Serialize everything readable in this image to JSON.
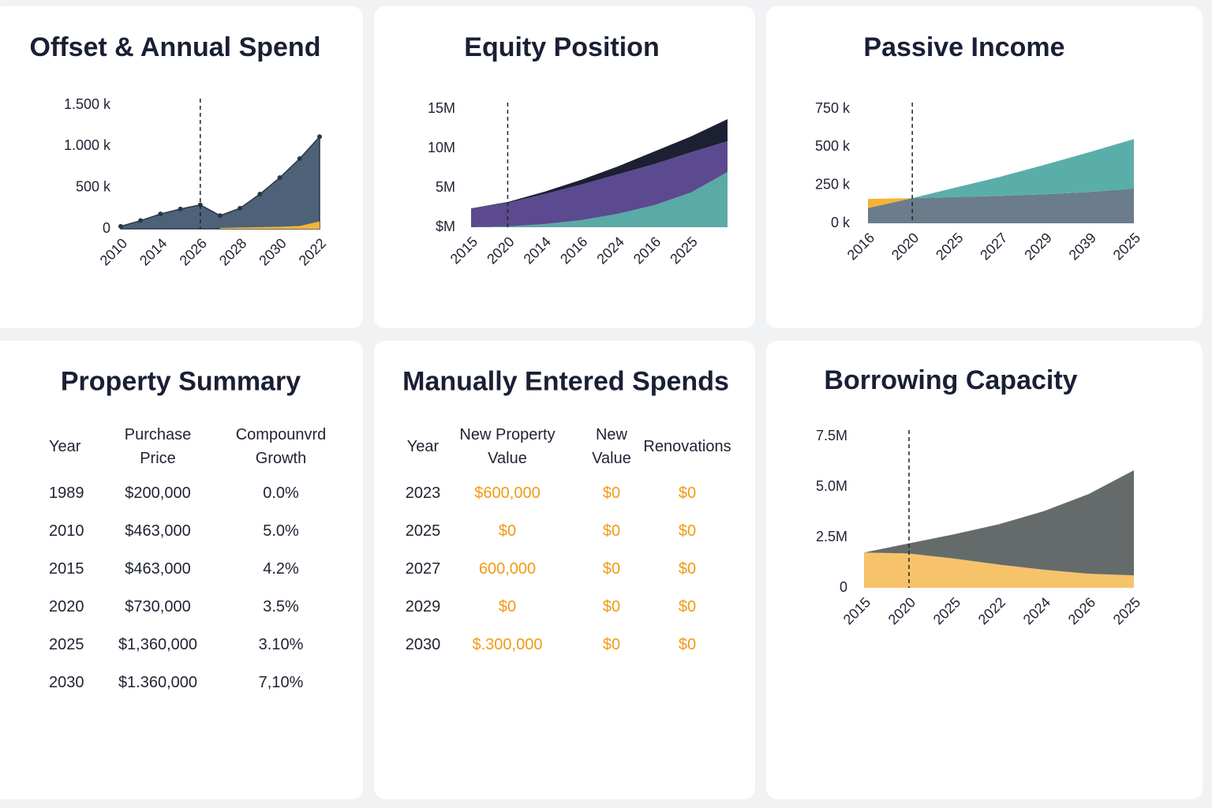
{
  "chart_data": [
    {
      "type": "area",
      "title": "Offset & Annual Spend",
      "categories": [
        "2010",
        null,
        "2014",
        null,
        "2026",
        null,
        "2028",
        null,
        "2030",
        null,
        "2022"
      ],
      "ylim": [
        0,
        1500
      ],
      "yticks": [
        0,
        {
          "value": 500,
          "label": "500 k"
        },
        {
          "value": 1000,
          "label": "1.000 k"
        },
        {
          "value": 1500,
          "label": "1.500 k"
        }
      ],
      "stacked": false,
      "markers": true,
      "marker_x": "2026",
      "series": [
        {
          "color": "#4d6278",
          "values": [
            30,
            100,
            180,
            240,
            290,
            160,
            250,
            420,
            620,
            850,
            1115
          ]
        },
        {
          "color": "#f5b335",
          "values": [
            null,
            null,
            null,
            null,
            null,
            10,
            15,
            20,
            25,
            35,
            90
          ]
        }
      ]
    },
    {
      "type": "area",
      "title": "Equity Position",
      "categories": [
        "2015",
        "2020",
        "2014",
        "2016",
        "2024",
        "2016",
        "2025",
        null
      ],
      "ylim": [
        0,
        15
      ],
      "yticks": [
        {
          "value": 0,
          "label": "$M"
        },
        {
          "value": 5,
          "label": "5M"
        },
        {
          "value": 10,
          "label": "10M"
        },
        {
          "value": 15,
          "label": "15M"
        }
      ],
      "stacked": true,
      "markers": false,
      "marker_x": "2020",
      "series": [
        {
          "color": "#5aaaa6",
          "values": [
            0,
            0.1,
            0.4,
            0.9,
            1.7,
            2.8,
            4.4,
            7.0
          ]
        },
        {
          "color": "#5b4a8f",
          "values": [
            2.4,
            3.0,
            3.8,
            4.5,
            5.0,
            5.2,
            5.1,
            3.9
          ]
        },
        {
          "color": "#1d1f33",
          "values": [
            0,
            0.1,
            0.3,
            0.6,
            1.0,
            1.6,
            2.0,
            2.8
          ]
        }
      ]
    },
    {
      "type": "area",
      "title": "Passive Income",
      "categories": [
        "2016",
        "2020",
        "2025",
        "2027",
        "2029",
        "2039",
        "2025"
      ],
      "ylim": [
        0,
        750
      ],
      "yticks": [
        {
          "value": 0,
          "label": "0 k"
        },
        {
          "value": 250,
          "label": "250 k"
        },
        {
          "value": 500,
          "label": "500 k"
        },
        {
          "value": 750,
          "label": "750 k"
        }
      ],
      "stacked": true,
      "markers": false,
      "marker_x": "2020",
      "series": [
        {
          "color": "#6b7c8c",
          "values": [
            100,
            165,
            172,
            180,
            190,
            205,
            228
          ]
        },
        {
          "color": "#f5b335",
          "values": [
            60,
            0,
            null,
            null,
            null,
            null,
            null
          ]
        },
        {
          "color": "#5aaeaa",
          "values": [
            null,
            0,
            64,
            126,
            195,
            262,
            324
          ]
        }
      ]
    },
    {
      "type": "area",
      "title": "Borrowing Capacity",
      "categories": [
        "2015",
        "2020",
        "2025",
        "2022",
        "2024",
        "2026",
        "2025"
      ],
      "ylim": [
        0,
        7.5
      ],
      "yticks": [
        0,
        {
          "value": 2.5,
          "label": "2.5M"
        },
        {
          "value": 5,
          "label": "5.0M"
        },
        {
          "value": 7.5,
          "label": "7.5M"
        }
      ],
      "stacked": true,
      "markers": false,
      "marker_x": "2020",
      "series": [
        {
          "color": "#f7c36a",
          "values": [
            1.75,
            1.7,
            1.45,
            1.15,
            0.9,
            0.7,
            0.62
          ]
        },
        {
          "color": "#656b6b",
          "values": [
            0,
            0.5,
            1.2,
            2.0,
            2.9,
            3.95,
            5.2
          ]
        }
      ]
    }
  ],
  "tables": [
    {
      "title": "Property Summary",
      "columns": [
        "Year",
        "Purchase Price",
        "Compounvrd Growth"
      ],
      "rows": [
        [
          "1989",
          "$200,000",
          "0.0%"
        ],
        [
          "2010",
          "$463,000",
          "5.0%"
        ],
        [
          "2015",
          "$463,000",
          "4.2%"
        ],
        [
          "2020",
          "$730,000",
          "3.5%"
        ],
        [
          "2025",
          "$1,360,000",
          "3.10%"
        ],
        [
          "2030",
          "$1.360,000",
          "7,10%"
        ]
      ]
    },
    {
      "title": "Manually Entered Spends",
      "columns": [
        "Year",
        "New Property Value",
        "New Value",
        "Renovations"
      ],
      "rows": [
        [
          "2023",
          "$600,000",
          "$0",
          "$0"
        ],
        [
          "2025",
          "$0",
          "$0",
          "$0"
        ],
        [
          "2027",
          "600,000",
          "$0",
          "$0"
        ],
        [
          "2029",
          "$0",
          "$0",
          "$0"
        ],
        [
          "2030",
          "$.300,000",
          "$0",
          "$0"
        ]
      ],
      "value_color": "#f29a12"
    }
  ]
}
